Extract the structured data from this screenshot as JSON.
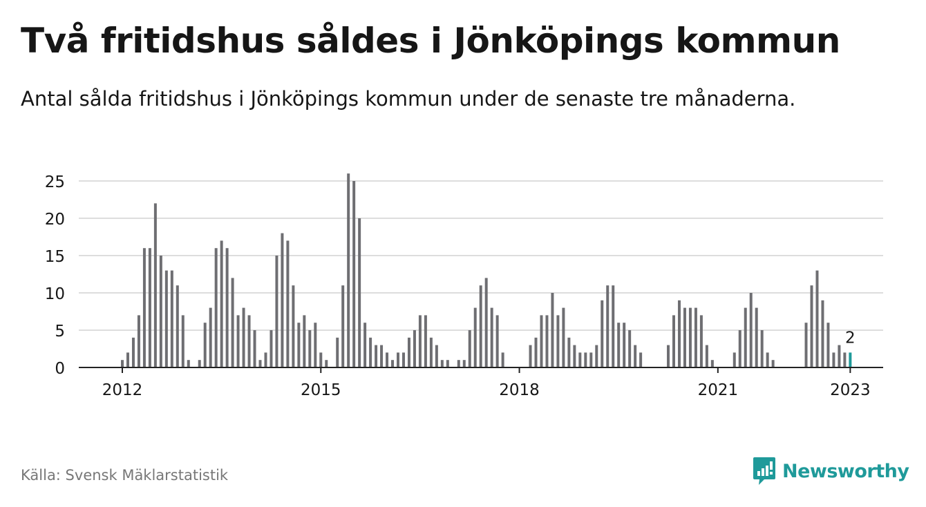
{
  "header": {
    "title": "Två fritidshus såldes i Jönköpings kommun",
    "subtitle": "Antal sålda fritidshus i Jönköpings kommun under de senaste tre månaderna."
  },
  "footer": {
    "source": "Källa: Svensk Mäklarstatistik",
    "brand": "Newsworthy",
    "brand_icon": "newsworthy-logo-icon"
  },
  "colors": {
    "bar": "#6e6e72",
    "highlight": "#1f9a9a",
    "grid": "#dddddd",
    "axis": "#222222",
    "text": "#161616",
    "muted": "#777777"
  },
  "chart_data": {
    "type": "bar",
    "ylim": [
      0,
      26
    ],
    "yticks": [
      0,
      5,
      10,
      15,
      20,
      25
    ],
    "xticks": [
      "2012",
      "2015",
      "2018",
      "2021",
      "2023"
    ],
    "start_month": "2011-10",
    "highlight_label": "2",
    "grid": true,
    "values": [
      0,
      0,
      0,
      1,
      2,
      4,
      7,
      16,
      16,
      22,
      15,
      13,
      13,
      11,
      7,
      1,
      0,
      1,
      6,
      8,
      16,
      17,
      16,
      12,
      7,
      8,
      7,
      5,
      1,
      2,
      5,
      15,
      18,
      17,
      11,
      6,
      7,
      5,
      6,
      2,
      1,
      0,
      4,
      11,
      26,
      25,
      20,
      6,
      4,
      3,
      3,
      2,
      1,
      2,
      2,
      4,
      5,
      7,
      7,
      4,
      3,
      1,
      1,
      0,
      1,
      1,
      5,
      8,
      11,
      12,
      8,
      7,
      2,
      0,
      0,
      0,
      0,
      3,
      4,
      7,
      7,
      10,
      7,
      8,
      4,
      3,
      2,
      2,
      2,
      3,
      9,
      11,
      11,
      6,
      6,
      5,
      3,
      2,
      0,
      0,
      0,
      0,
      3,
      7,
      9,
      8,
      8,
      8,
      7,
      3,
      1,
      0,
      0,
      0,
      2,
      5,
      8,
      10,
      8,
      5,
      2,
      1,
      0,
      0,
      0,
      0,
      0,
      6,
      11,
      13,
      9,
      6,
      2,
      3,
      2,
      2
    ]
  }
}
